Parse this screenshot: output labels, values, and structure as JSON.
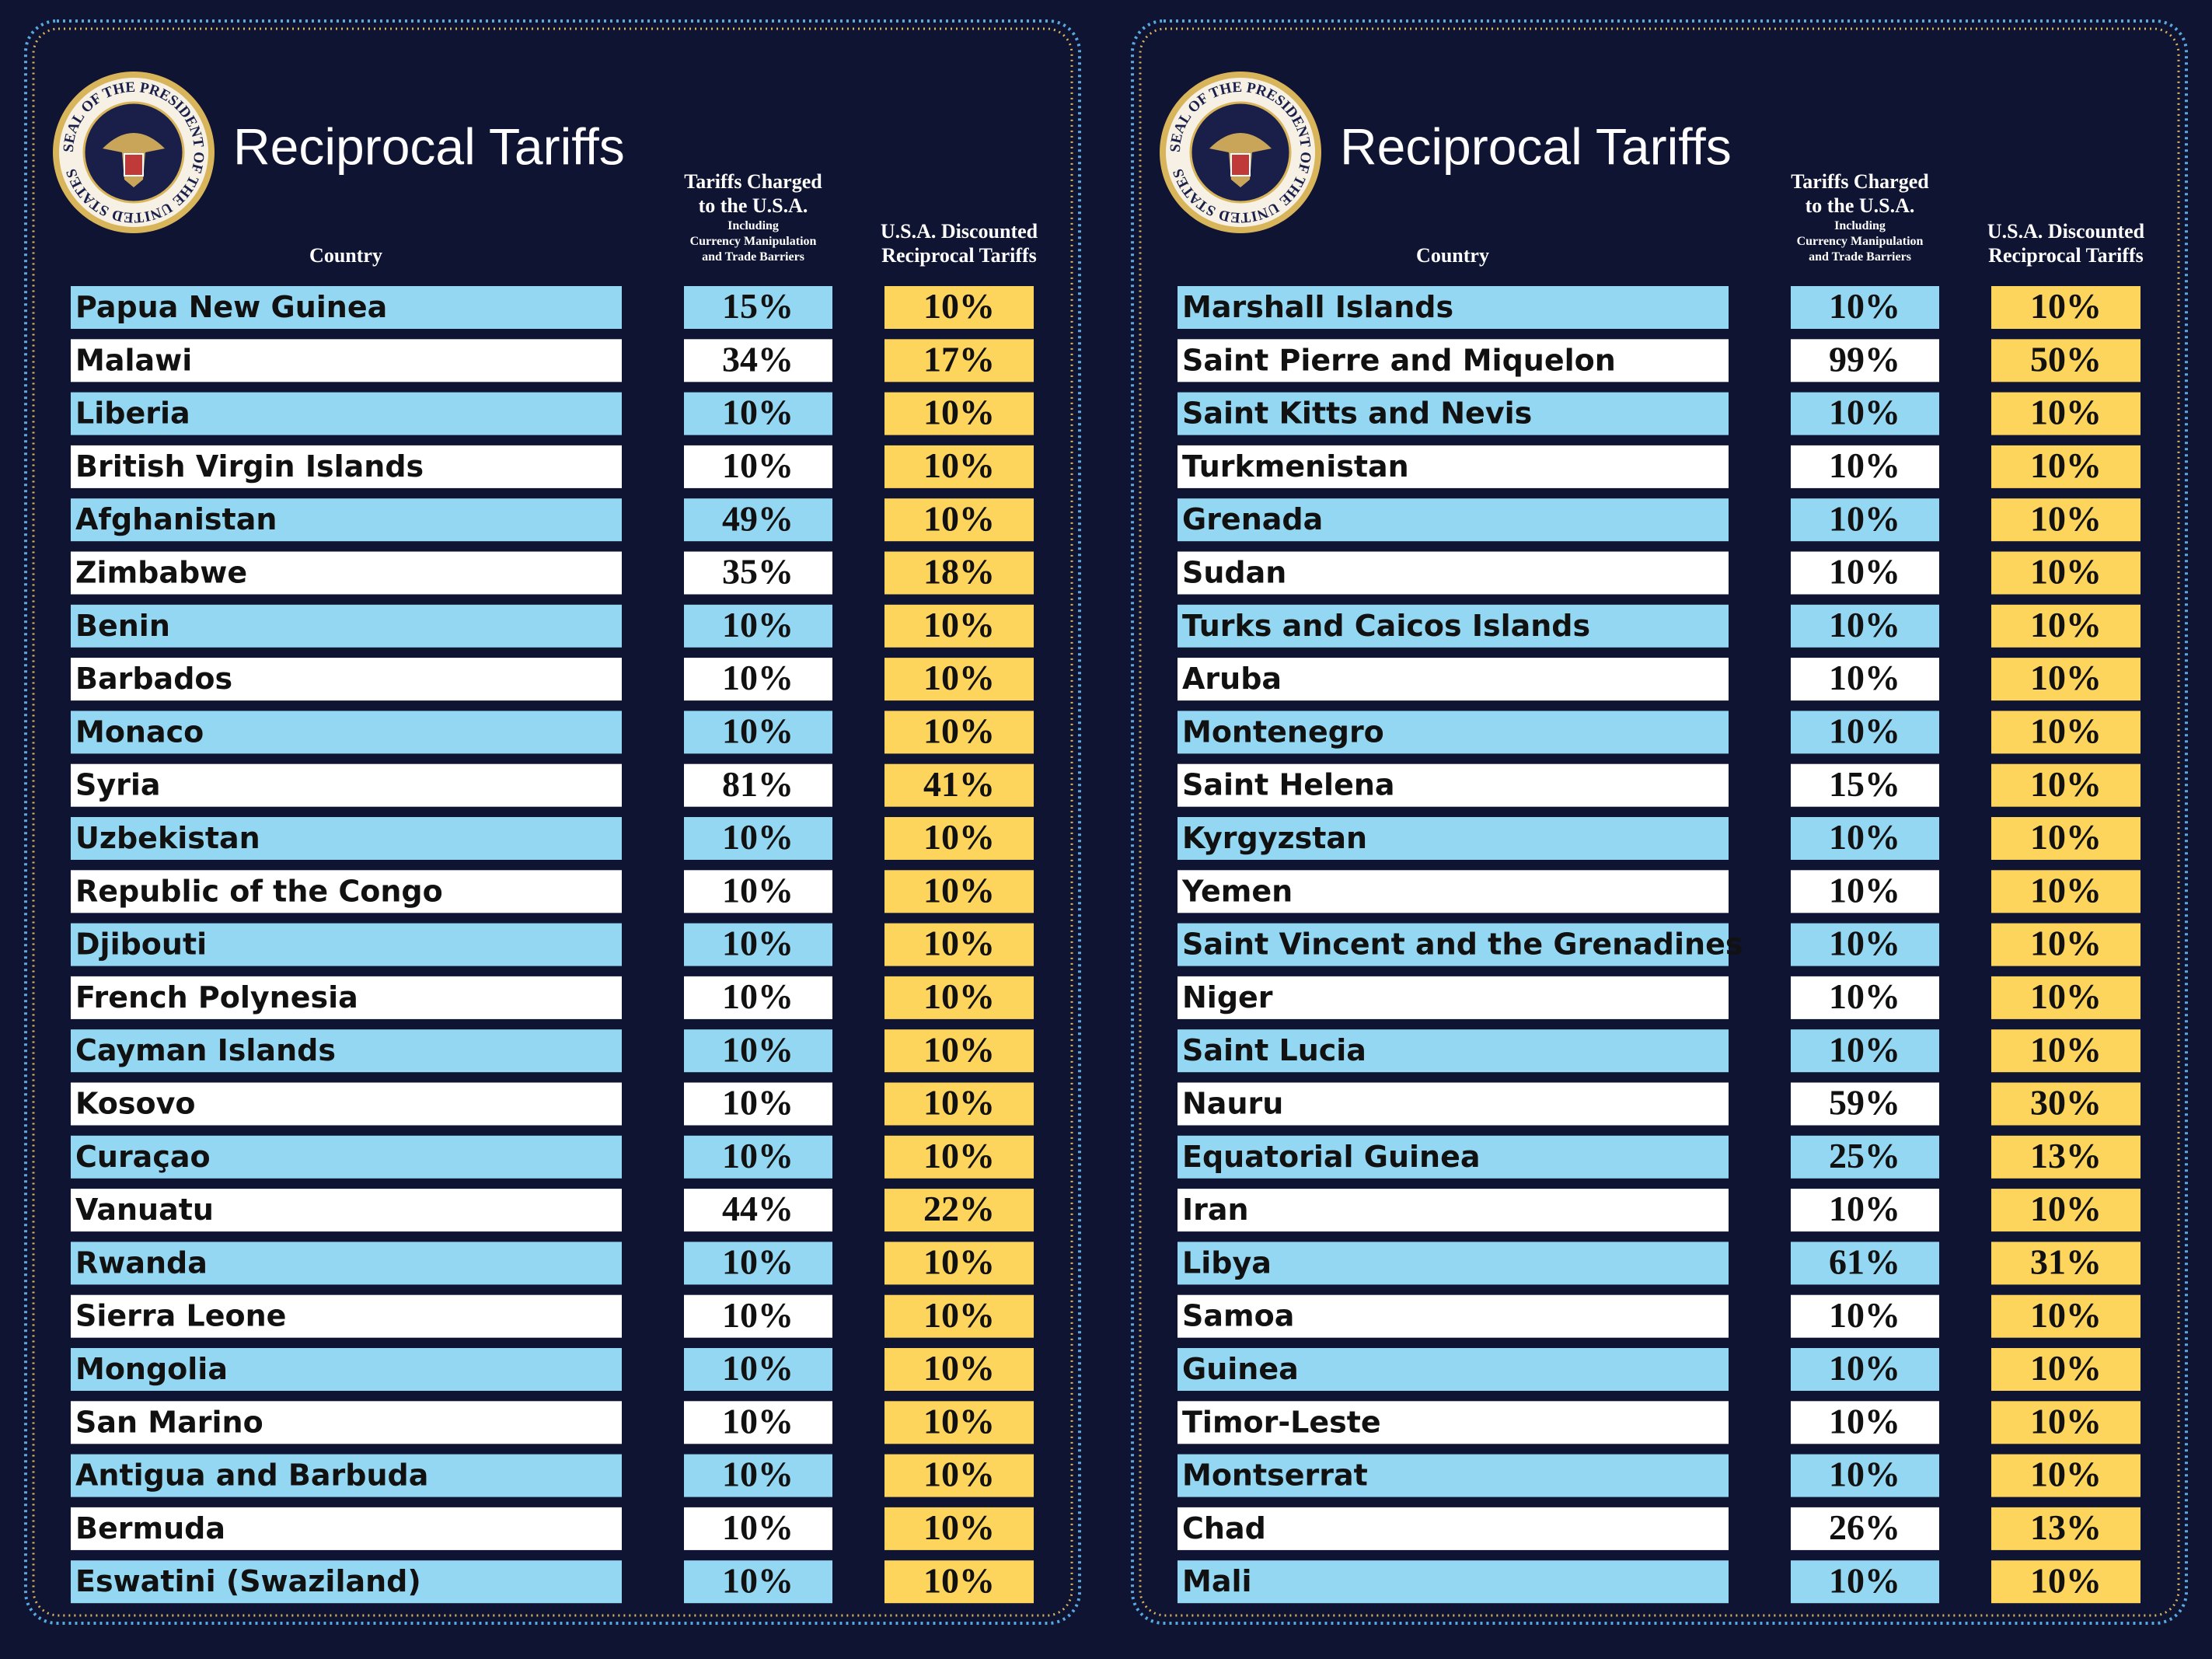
{
  "panels": [
    {
      "seal_text": "SEAL OF THE PRESIDENT OF THE UNITED STATES",
      "title": "Reciprocal Tariffs",
      "headers": {
        "country": "Country",
        "charged": [
          "Tariffs Charged",
          "to the U.S.A."
        ],
        "charged_note": [
          "Including",
          "Currency Manipulation",
          "and Trade Barriers"
        ],
        "discounted": [
          "U.S.A. Discounted",
          "Reciprocal Tariffs"
        ]
      },
      "rows": [
        [
          "Papua New Guinea",
          "15%",
          "10%"
        ],
        [
          "Malawi",
          "34%",
          "17%"
        ],
        [
          "Liberia",
          "10%",
          "10%"
        ],
        [
          "British Virgin Islands",
          "10%",
          "10%"
        ],
        [
          "Afghanistan",
          "49%",
          "10%"
        ],
        [
          "Zimbabwe",
          "35%",
          "18%"
        ],
        [
          "Benin",
          "10%",
          "10%"
        ],
        [
          "Barbados",
          "10%",
          "10%"
        ],
        [
          "Monaco",
          "10%",
          "10%"
        ],
        [
          "Syria",
          "81%",
          "41%"
        ],
        [
          "Uzbekistan",
          "10%",
          "10%"
        ],
        [
          "Republic of the Congo",
          "10%",
          "10%"
        ],
        [
          "Djibouti",
          "10%",
          "10%"
        ],
        [
          "French Polynesia",
          "10%",
          "10%"
        ],
        [
          "Cayman Islands",
          "10%",
          "10%"
        ],
        [
          "Kosovo",
          "10%",
          "10%"
        ],
        [
          "Curaçao",
          "10%",
          "10%"
        ],
        [
          "Vanuatu",
          "44%",
          "22%"
        ],
        [
          "Rwanda",
          "10%",
          "10%"
        ],
        [
          "Sierra Leone",
          "10%",
          "10%"
        ],
        [
          "Mongolia",
          "10%",
          "10%"
        ],
        [
          "San Marino",
          "10%",
          "10%"
        ],
        [
          "Antigua and Barbuda",
          "10%",
          "10%"
        ],
        [
          "Bermuda",
          "10%",
          "10%"
        ],
        [
          "Eswatini (Swaziland)",
          "10%",
          "10%"
        ]
      ]
    },
    {
      "seal_text": "SEAL OF THE PRESIDENT OF THE UNITED STATES",
      "title": "Reciprocal Tariffs",
      "headers": {
        "country": "Country",
        "charged": [
          "Tariffs Charged",
          "to the U.S.A."
        ],
        "charged_note": [
          "Including",
          "Currency Manipulation",
          "and Trade Barriers"
        ],
        "discounted": [
          "U.S.A. Discounted",
          "Reciprocal Tariffs"
        ]
      },
      "rows": [
        [
          "Marshall Islands",
          "10%",
          "10%"
        ],
        [
          "Saint Pierre and Miquelon",
          "99%",
          "50%"
        ],
        [
          "Saint Kitts and Nevis",
          "10%",
          "10%"
        ],
        [
          "Turkmenistan",
          "10%",
          "10%"
        ],
        [
          "Grenada",
          "10%",
          "10%"
        ],
        [
          "Sudan",
          "10%",
          "10%"
        ],
        [
          "Turks and Caicos Islands",
          "10%",
          "10%"
        ],
        [
          "Aruba",
          "10%",
          "10%"
        ],
        [
          "Montenegro",
          "10%",
          "10%"
        ],
        [
          "Saint Helena",
          "15%",
          "10%"
        ],
        [
          "Kyrgyzstan",
          "10%",
          "10%"
        ],
        [
          "Yemen",
          "10%",
          "10%"
        ],
        [
          "Saint Vincent and the Grenadines",
          "10%",
          "10%"
        ],
        [
          "Niger",
          "10%",
          "10%"
        ],
        [
          "Saint Lucia",
          "10%",
          "10%"
        ],
        [
          "Nauru",
          "59%",
          "30%"
        ],
        [
          "Equatorial Guinea",
          "25%",
          "13%"
        ],
        [
          "Iran",
          "10%",
          "10%"
        ],
        [
          "Libya",
          "61%",
          "31%"
        ],
        [
          "Samoa",
          "10%",
          "10%"
        ],
        [
          "Guinea",
          "10%",
          "10%"
        ],
        [
          "Timor-Leste",
          "10%",
          "10%"
        ],
        [
          "Montserrat",
          "10%",
          "10%"
        ],
        [
          "Chad",
          "26%",
          "13%"
        ],
        [
          "Mali",
          "10%",
          "10%"
        ]
      ]
    }
  ]
}
